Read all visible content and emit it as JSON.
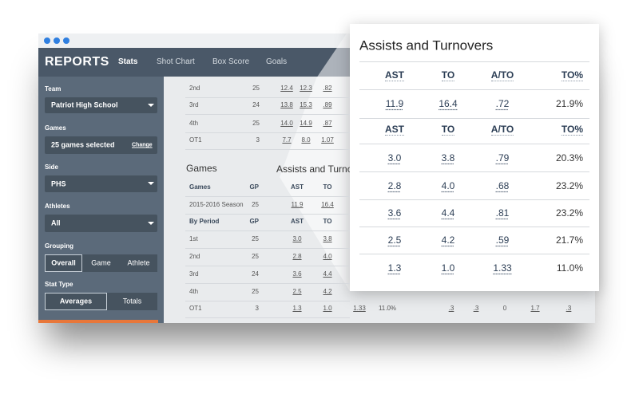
{
  "header": {
    "title": "REPORTS",
    "tabs": [
      "Stats",
      "Shot Chart",
      "Box Score",
      "Goals"
    ]
  },
  "sidebar": {
    "team_label": "Team",
    "team": "Patriot High School",
    "games_label": "Games",
    "games": "25 games selected",
    "games_change": "Change",
    "side_label": "Side",
    "side": "PHS",
    "athletes_label": "Athletes",
    "athletes": "All",
    "grouping_label": "Grouping",
    "grouping": [
      "Overall",
      "Game",
      "Athlete"
    ],
    "stat_type_label": "Stat Type",
    "stat_type": [
      "Averages",
      "Totals"
    ]
  },
  "top_table": {
    "rows": [
      [
        "2nd",
        "25",
        "12.4",
        "12.3",
        ".82"
      ],
      [
        "3rd",
        "24",
        "13.8",
        "15.3",
        ".89"
      ],
      [
        "4th",
        "25",
        "14.0",
        "14.9",
        ".87"
      ],
      [
        "OT1",
        "3",
        "7.7",
        "8.0",
        "1.07"
      ]
    ]
  },
  "games": {
    "heading": "Games",
    "assists_heading": "Assists and Turnovers",
    "header": [
      "Games",
      "GP",
      "AST",
      "TO"
    ],
    "season_row": [
      "2015-2016 Season",
      "25",
      "11.9",
      "16.4"
    ],
    "period_header": [
      "By Period",
      "GP",
      "AST",
      "TO"
    ],
    "rows": [
      [
        "1st",
        "25",
        "3.0",
        "3.8"
      ],
      [
        "2nd",
        "25",
        "2.8",
        "4.0"
      ],
      [
        "3rd",
        "24",
        "3.6",
        "4.4"
      ],
      [
        "4th",
        "25",
        "2.5",
        "4.2"
      ],
      [
        "OT1",
        "3",
        "1.3",
        "1.0",
        "1.33",
        "11.0%",
        ".3",
        ".3",
        "0",
        "1.7",
        ".3"
      ]
    ]
  },
  "popup": {
    "title": "Assists and Turnovers",
    "header": [
      "AST",
      "TO",
      "A/TO",
      "TO%"
    ],
    "season_row": [
      "11.9",
      "16.4",
      ".72",
      "21.9%"
    ],
    "period_header": [
      "AST",
      "TO",
      "A/TO",
      "TO%"
    ],
    "rows": [
      [
        "3.0",
        "3.8",
        ".79",
        "20.3%"
      ],
      [
        "2.8",
        "4.0",
        ".68",
        "23.2%"
      ],
      [
        "3.6",
        "4.4",
        ".81",
        "23.2%"
      ],
      [
        "2.5",
        "4.2",
        ".59",
        "21.7%"
      ],
      [
        "1.3",
        "1.0",
        "1.33",
        "11.0%"
      ]
    ]
  }
}
